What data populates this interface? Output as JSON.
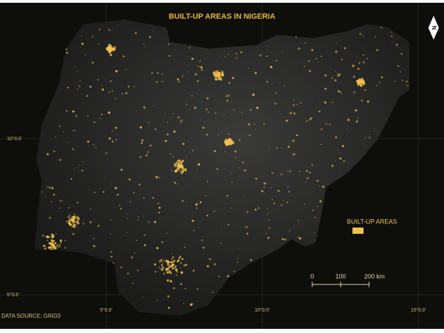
{
  "header": {
    "title": "BUILT-UP AREAS IN NIGERIA"
  },
  "north_arrow": {
    "label": "N"
  },
  "legend": {
    "label": "BUILT-UP AREAS"
  },
  "scale_bar": {
    "labels": [
      "0",
      "100",
      "200 km"
    ]
  },
  "graticule": {
    "lat_labels": [
      "10°0.0'",
      "5°0.0'"
    ],
    "lon_labels": [
      "5°0.0'",
      "10°0.0'",
      "15°0.0'"
    ]
  },
  "source": "DATA SOURCE: GRID3"
}
